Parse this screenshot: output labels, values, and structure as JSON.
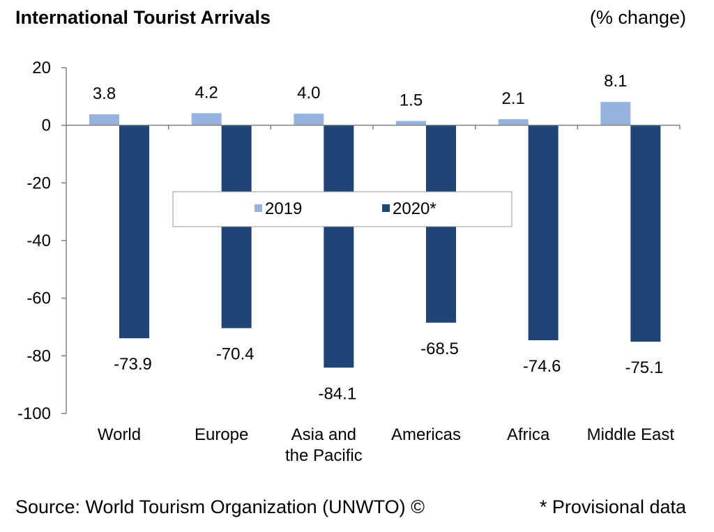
{
  "title": "International Tourist Arrivals",
  "unit_label": "(% change)",
  "source": "Source: World Tourism Organization (UNWTO) ©",
  "note": "* Provisional data",
  "colors": {
    "series_2019": "#95b3e0",
    "series_2020": "#1f4577",
    "axis": "#808080"
  },
  "chart_data": {
    "type": "bar",
    "categories": [
      "World",
      "Europe",
      "Asia and the Pacific",
      "Americas",
      "Africa",
      "Middle East"
    ],
    "category_lines": [
      [
        "World"
      ],
      [
        "Europe"
      ],
      [
        "Asia and",
        "the Pacific"
      ],
      [
        "Americas"
      ],
      [
        "Africa"
      ],
      [
        "Middle East"
      ]
    ],
    "series": [
      {
        "name": "2019",
        "values": [
          3.8,
          4.2,
          4.0,
          1.5,
          2.1,
          8.1
        ],
        "labels": [
          "3.8",
          "4.2",
          "4.0",
          "1.5",
          "2.1",
          "8.1"
        ]
      },
      {
        "name": "2020*",
        "values": [
          -73.9,
          -70.4,
          -84.1,
          -68.5,
          -74.6,
          -75.1
        ],
        "labels": [
          "-73.9",
          "-70.4",
          "-84.1",
          "-68.5",
          "-74.6",
          "-75.1"
        ]
      }
    ],
    "ylim": [
      -100,
      20
    ],
    "yticks": [
      20,
      0,
      -20,
      -40,
      -60,
      -80,
      -100
    ],
    "legend_position": "center",
    "grid": false
  }
}
